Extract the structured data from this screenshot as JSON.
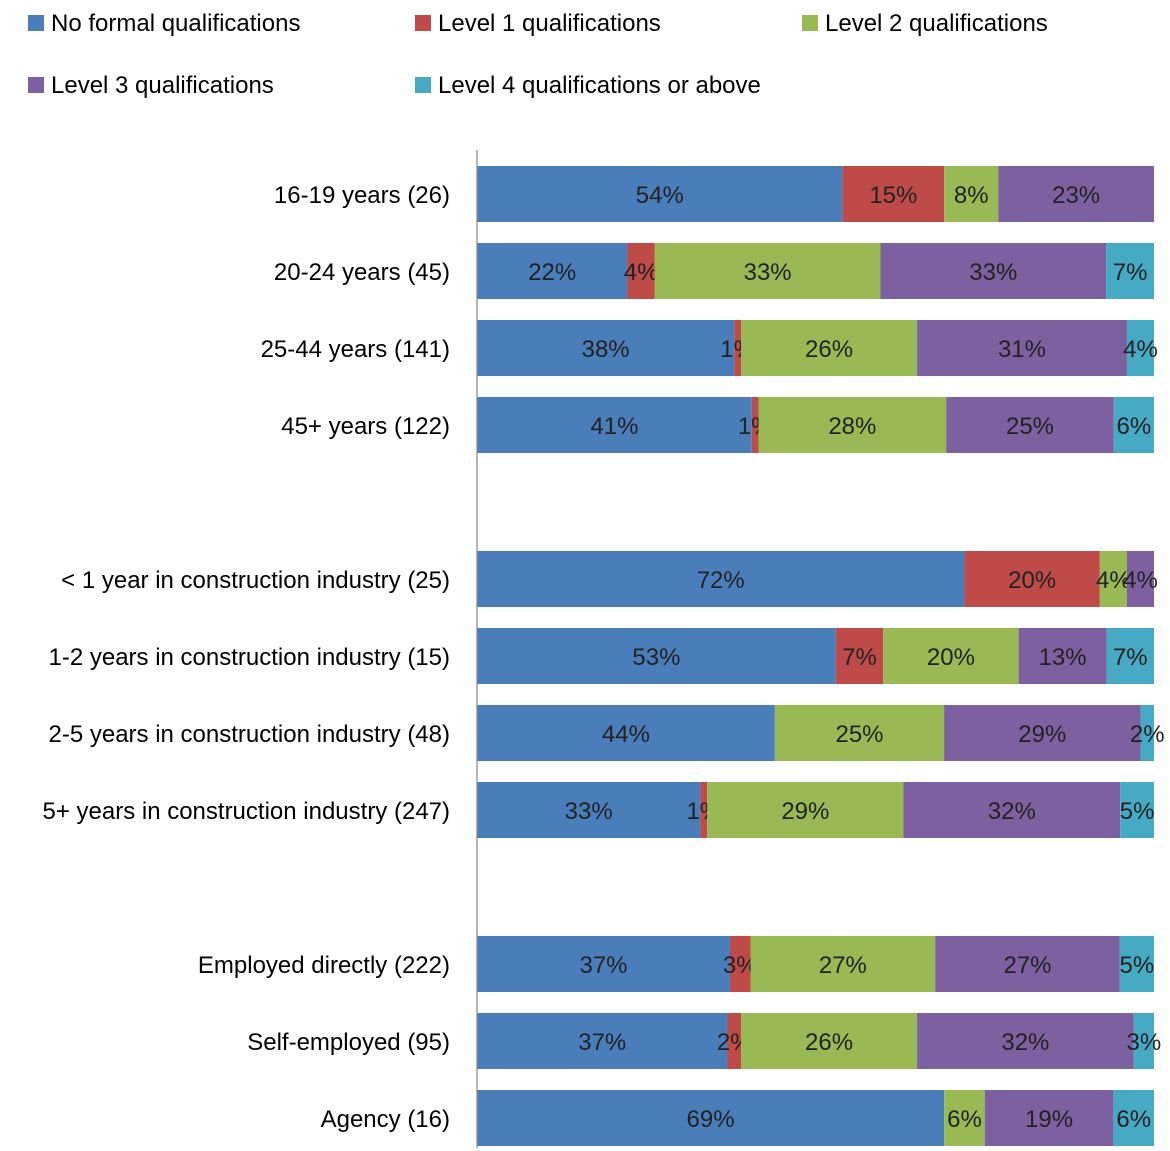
{
  "chart_data": {
    "type": "bar",
    "orientation": "horizontal",
    "stacked": "percent",
    "legend_position": "top",
    "grid": false,
    "xlim": [
      0,
      100
    ],
    "categories": [
      "16-19 years (26)",
      "20-24 years (45)",
      "25-44 years (141)",
      "45+ years (122)",
      "",
      "< 1 year in construction industry (25)",
      "1-2 years in construction industry (15)",
      "2-5 years in construction industry (48)",
      "5+ years in construction industry (247)",
      "",
      "Employed directly (222)",
      "Self-employed (95)",
      "Agency (16)"
    ],
    "series": [
      {
        "name": "No formal qualifications",
        "color": "#4a7ebb",
        "values": [
          54,
          22,
          38,
          41,
          null,
          72,
          53,
          44,
          33,
          null,
          37,
          37,
          69
        ]
      },
      {
        "name": "Level 1 qualifications",
        "color": "#be4b48",
        "values": [
          15,
          4,
          1,
          1,
          null,
          20,
          7,
          0,
          1,
          null,
          3,
          2,
          0
        ]
      },
      {
        "name": "Level 2 qualifications",
        "color": "#98b954",
        "values": [
          8,
          33,
          26,
          28,
          null,
          4,
          20,
          25,
          29,
          null,
          27,
          26,
          6
        ]
      },
      {
        "name": "Level 3 qualifications",
        "color": "#7d60a0",
        "values": [
          23,
          33,
          31,
          25,
          null,
          4,
          13,
          29,
          32,
          null,
          27,
          32,
          19
        ]
      },
      {
        "name": "Level 4 qualifications or above",
        "color": "#46aac5",
        "values": [
          0,
          7,
          4,
          6,
          null,
          0,
          7,
          2,
          5,
          null,
          5,
          3,
          6
        ]
      }
    ]
  }
}
